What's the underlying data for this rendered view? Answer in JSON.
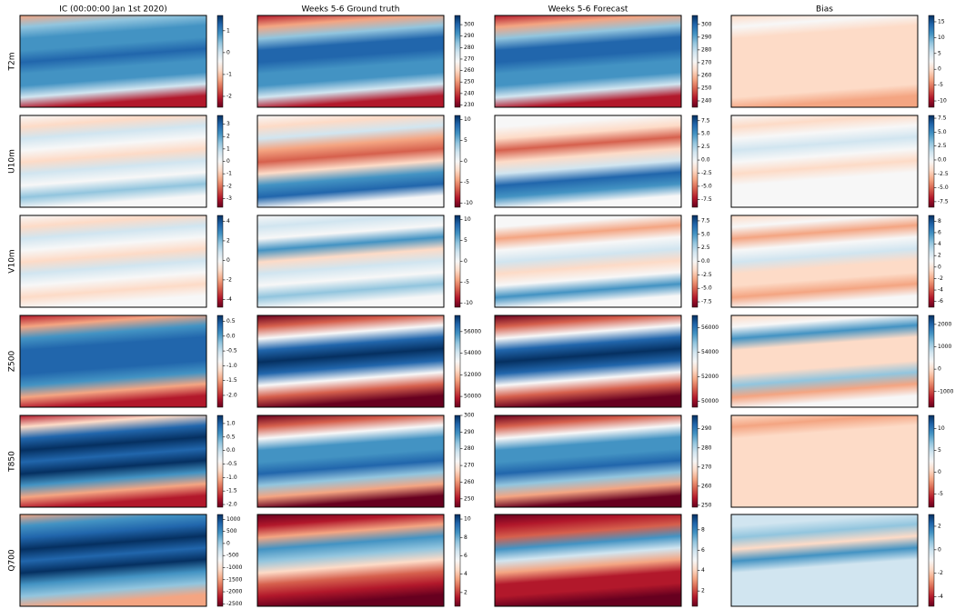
{
  "columns": [
    "IC (00:00:00 Jan 1st 2020)",
    "Weeks 5-6 Ground truth",
    "Weeks 5-6 Forecast",
    "Bias"
  ],
  "rows": [
    {
      "label": "T2m",
      "panels": [
        {
          "clim": [
            -2.5,
            1.7
          ],
          "cticks": [
            1,
            0,
            -1,
            -2
          ]
        },
        {
          "clim": [
            228,
            308
          ],
          "cticks": [
            300,
            290,
            280,
            270,
            260,
            250,
            240,
            230
          ]
        },
        {
          "clim": [
            235,
            307
          ],
          "cticks": [
            300,
            290,
            280,
            270,
            260,
            250,
            240
          ]
        },
        {
          "clim": [
            -12,
            17
          ],
          "cticks": [
            15,
            10,
            5,
            0,
            -5,
            -10
          ]
        }
      ]
    },
    {
      "label": "U10m",
      "panels": [
        {
          "clim": [
            -3.7,
            3.7
          ],
          "cticks": [
            3,
            2,
            1,
            0,
            -1,
            -2,
            -3
          ]
        },
        {
          "clim": [
            -11,
            11
          ],
          "cticks": [
            10,
            5,
            0,
            -5,
            -10
          ]
        },
        {
          "clim": [
            -9,
            8.5
          ],
          "cticks": [
            7.5,
            {
              "value": 5,
              "label": "5.0"
            },
            2.5,
            {
              "value": 0,
              "label": "0.0"
            },
            -2.5,
            {
              "value": -5,
              "label": "-5.0"
            },
            -7.5
          ]
        },
        {
          "clim": [
            -8.5,
            8
          ],
          "cticks": [
            7.5,
            {
              "value": 5,
              "label": "5.0"
            },
            2.5,
            {
              "value": 0,
              "label": "0.0"
            },
            -2.5,
            {
              "value": -5,
              "label": "-5.0"
            },
            -7.5
          ]
        }
      ]
    },
    {
      "label": "V10m",
      "panels": [
        {
          "clim": [
            -4.8,
            4.6
          ],
          "cticks": [
            4,
            2,
            0,
            -2,
            -4
          ]
        },
        {
          "clim": [
            -11,
            11
          ],
          "cticks": [
            10,
            5,
            0,
            -5,
            -10
          ]
        },
        {
          "clim": [
            -8.5,
            8.5
          ],
          "cticks": [
            7.5,
            {
              "value": 5,
              "label": "5.0"
            },
            2.5,
            {
              "value": 0,
              "label": "0.0"
            },
            -2.5,
            {
              "value": -5,
              "label": "-5.0"
            },
            -7.5
          ]
        },
        {
          "clim": [
            -7,
            9
          ],
          "cticks": [
            8,
            6,
            4,
            2,
            0,
            -2,
            -4,
            -6
          ]
        }
      ]
    },
    {
      "label": "Z500",
      "panels": [
        {
          "clim": [
            -2.4,
            0.7
          ],
          "cticks": [
            0.5,
            {
              "value": 0,
              "label": "0.0"
            },
            -0.5,
            {
              "value": -1,
              "label": "-1.0"
            },
            -1.5,
            {
              "value": -2,
              "label": "-2.0"
            }
          ]
        },
        {
          "clim": [
            49000,
            57500
          ],
          "cticks": [
            56000,
            54000,
            52000,
            50000
          ]
        },
        {
          "clim": [
            49500,
            57000
          ],
          "cticks": [
            56000,
            54000,
            52000,
            50000
          ]
        },
        {
          "clim": [
            -1700,
            2400
          ],
          "cticks": [
            2000,
            1000,
            0,
            -1000
          ]
        }
      ]
    },
    {
      "label": "T850",
      "panels": [
        {
          "clim": [
            -2.1,
            1.3
          ],
          "cticks": [
            {
              "value": 1,
              "label": "1.0"
            },
            0.5,
            {
              "value": 0,
              "label": "0.0"
            },
            -0.5,
            {
              "value": -1,
              "label": "-1.0"
            },
            -1.5,
            {
              "value": -2,
              "label": "-2.0"
            }
          ]
        },
        {
          "clim": [
            245,
            300
          ],
          "cticks": [
            300,
            290,
            280,
            270,
            260,
            250
          ]
        },
        {
          "clim": [
            249,
            297
          ],
          "cticks": [
            290,
            280,
            270,
            260,
            250
          ]
        },
        {
          "clim": [
            -8,
            13
          ],
          "cticks": [
            10,
            5,
            0,
            -5
          ]
        }
      ]
    },
    {
      "label": "Q700",
      "panels": [
        {
          "clim": [
            -2600,
            1200
          ],
          "cticks": [
            1000,
            500,
            0,
            -500,
            -1000,
            -1500,
            -2000,
            -2500
          ]
        },
        {
          "clim": [
            0.5,
            10.5
          ],
          "cticks": [
            10,
            8,
            6,
            4,
            2
          ]
        },
        {
          "clim": [
            0.5,
            9.5
          ],
          "cticks": [
            8,
            6,
            4,
            2
          ]
        },
        {
          "clim": [
            -4.8,
            3
          ],
          "cticks": [
            2,
            0,
            -2,
            -4
          ]
        }
      ]
    }
  ]
}
